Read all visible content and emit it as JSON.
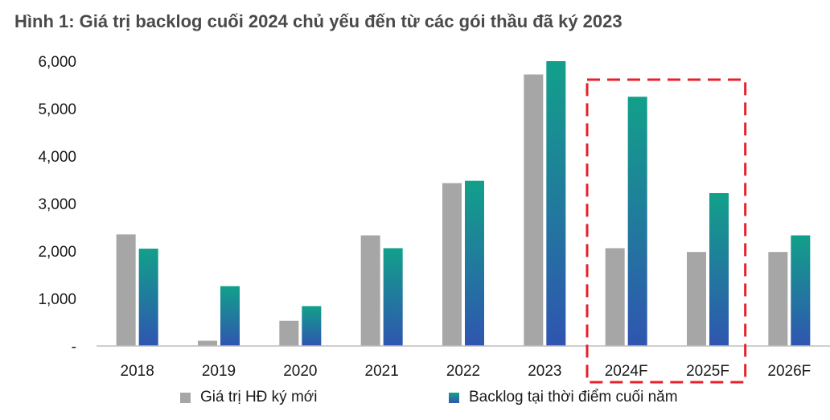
{
  "title": "Hình 1:  Giá trị backlog cuối 2024 chủ yếu đến từ các gói thầu đã ký 2023",
  "colors": {
    "series1": "#a6a6a6",
    "series2_top": "#12a08a",
    "series2_bottom": "#2f55b0",
    "highlight": "#e8202a",
    "axis": "#bdbdbd"
  },
  "chart_data": {
    "type": "bar",
    "categories": [
      "2018",
      "2019",
      "2020",
      "2021",
      "2022",
      "2023",
      "2024F",
      "2025F",
      "2026F"
    ],
    "series": [
      {
        "name": "Giá trị HĐ ký mới",
        "values": [
          2350,
          110,
          530,
          2330,
          3430,
          5720,
          2060,
          1980,
          1980
        ]
      },
      {
        "name": "Backlog tại thời điểm cuối năm",
        "values": [
          2050,
          1260,
          840,
          2060,
          3480,
          6000,
          5250,
          3220,
          2330
        ]
      }
    ],
    "yticks": [
      "-",
      "1,000",
      "2,000",
      "3,000",
      "4,000",
      "5,000",
      "6,000"
    ],
    "ylim": [
      0,
      6000
    ],
    "grid": false,
    "legend_position": "bottom",
    "highlighted_categories": [
      "2024F",
      "2025F"
    ]
  }
}
